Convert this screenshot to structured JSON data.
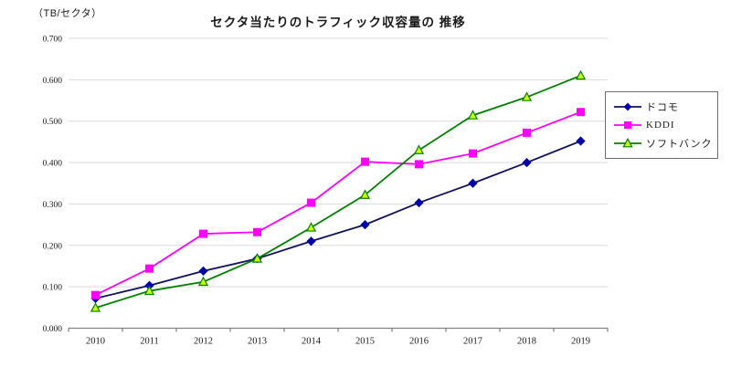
{
  "chart_data": {
    "type": "line",
    "title": "セクタ当たりのトラフィック収容量の 推移",
    "ylabel": "（TB/セクタ）",
    "xlabel": "",
    "categories": [
      "2010",
      "2011",
      "2012",
      "2013",
      "2014",
      "2015",
      "2016",
      "2017",
      "2018",
      "2019"
    ],
    "series": [
      {
        "name": "ドコモ",
        "marker": "diamond",
        "line_color": "#10105e",
        "marker_color": "#0000a8",
        "values": [
          0.072,
          0.103,
          0.138,
          0.168,
          0.21,
          0.25,
          0.303,
          0.35,
          0.4,
          0.452
        ]
      },
      {
        "name": "KDDI",
        "marker": "square",
        "line_color": "#ff00ff",
        "marker_color": "#ff00ff",
        "values": [
          0.08,
          0.144,
          0.228,
          0.232,
          0.303,
          0.402,
          0.396,
          0.422,
          0.472,
          0.522
        ]
      },
      {
        "name": "ソフトバンク",
        "marker": "triangle",
        "line_color": "#008000",
        "marker_color": "#ccff00",
        "values": [
          0.049,
          0.09,
          0.112,
          0.168,
          0.243,
          0.322,
          0.43,
          0.514,
          0.558,
          0.61
        ]
      }
    ],
    "ylim": [
      0,
      0.7
    ],
    "ytick_step": 0.1,
    "ytick_format_decimals": 3,
    "grid": true,
    "gridline_color": "#d9d9d9",
    "axis_color": "#7f7f7f",
    "legend_position": "right"
  }
}
